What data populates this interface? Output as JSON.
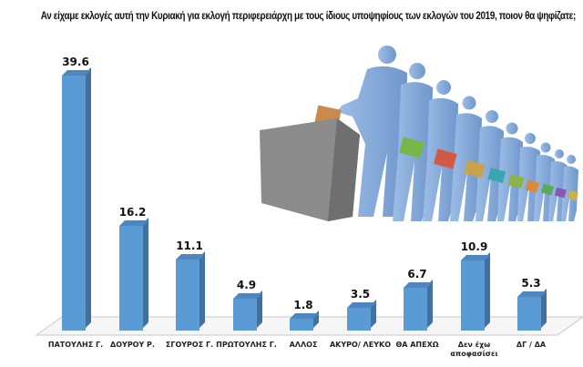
{
  "title": "Αν είχαμε εκλογές αυτή την Κυριακή για εκλογή περιφερειάρχη με τους ίδιους υποψηφίους των εκλογών του 2019, ποιον θα ψηφίζατε;",
  "colors": {
    "bar_front": "#5b9bd5",
    "bar_side": "#41719c",
    "bar_top": "#4e86bd"
  },
  "illustration": "voters-queue-ballot-box",
  "chart_data": {
    "type": "bar",
    "title": "Αν είχαμε εκλογές αυτή την Κυριακή για εκλογή περιφερειάρχη με τους ίδιους υποψηφίους των εκλογών του 2019, ποιον θα ψηφίζατε;",
    "categories": [
      "ΠΑΤΟΥΛΗΣ Γ.",
      "ΔΟΥΡΟΥ Ρ.",
      "ΣΓΟΥΡΟΣ Γ.",
      "ΠΡΩΤΟΥΛΗΣ Γ.",
      "ΑΛΛΟΣ",
      "ΑΚΥΡΟ/ ΛΕΥΚΟ",
      "ΘΑ ΑΠΕΧΩ",
      "Δεν έχω αποφασίσει",
      "ΔΓ / ΔΑ"
    ],
    "values": [
      39.6,
      16.2,
      11.1,
      4.9,
      1.8,
      3.5,
      6.7,
      10.9,
      5.3
    ],
    "value_labels": [
      "39.6",
      "16.2",
      "11.1",
      "4.9",
      "1.8",
      "3.5",
      "6.7",
      "10.9",
      "5.3"
    ],
    "xlabel": "",
    "ylabel": "",
    "ylim": [
      0,
      40
    ],
    "grid": false,
    "legend": "none",
    "style": "3d-column"
  }
}
